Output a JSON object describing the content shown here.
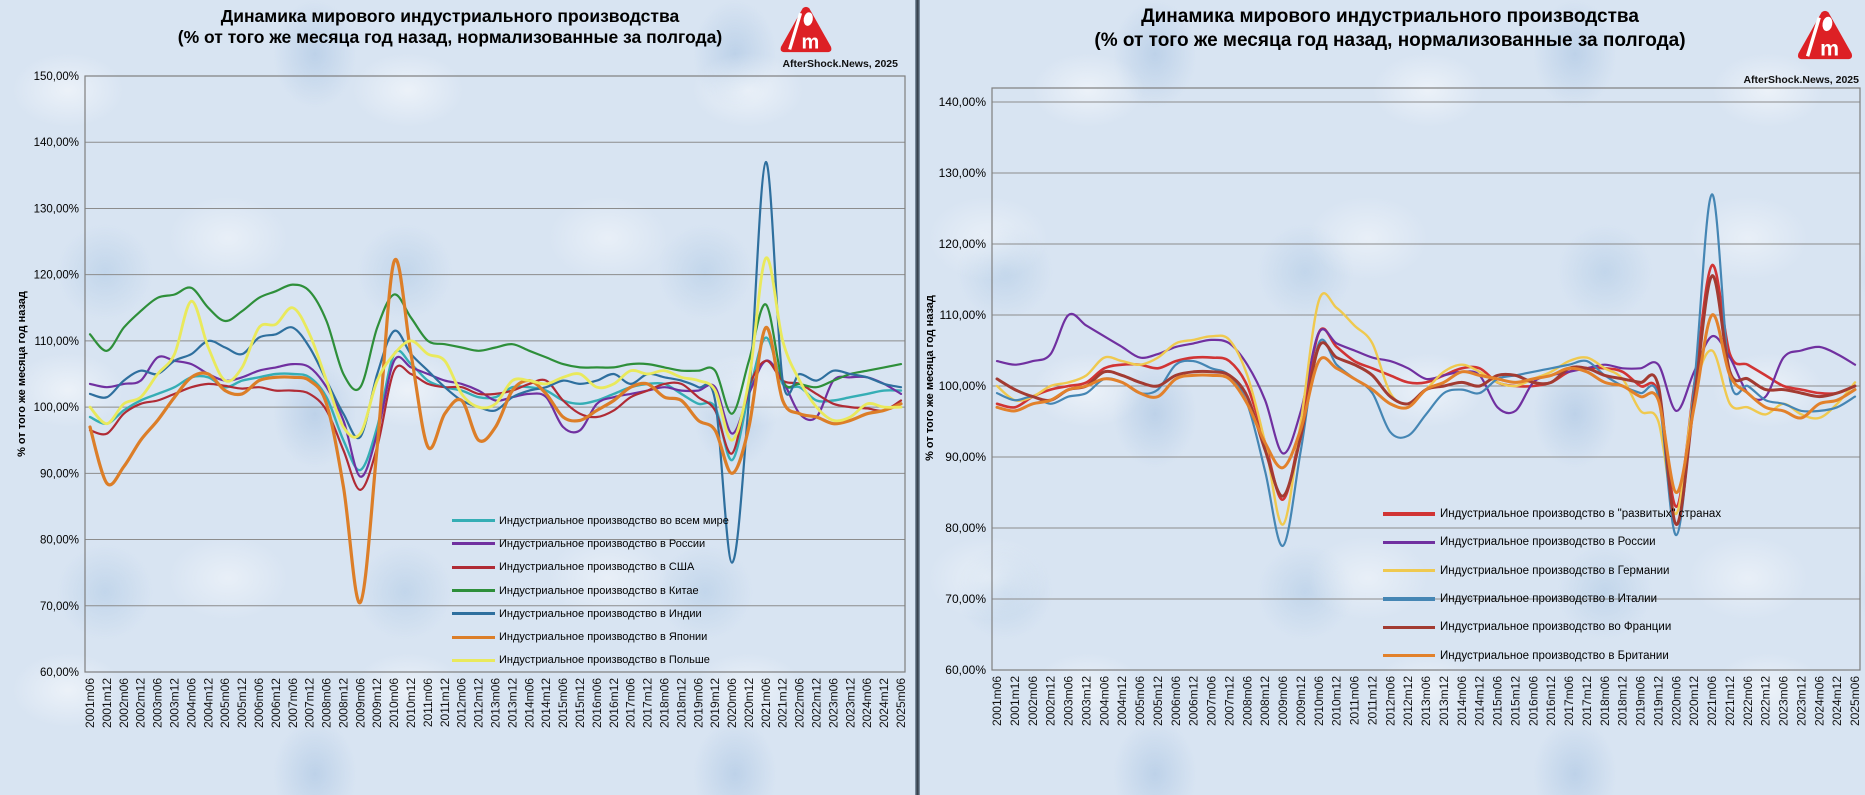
{
  "divider_name": "panel-divider",
  "chart_data": [
    {
      "type": "line",
      "title_line1": "Динамика мирового индустриального производства",
      "title_line2": "(% от того же месяца год назад, нормализованные за полгода)",
      "credit": "AfterShock.News, 2025",
      "ylabel": "% от того же месяца год назад",
      "ylim": [
        60,
        150
      ],
      "grid": true,
      "legend_position": "inside-bottom-center",
      "ytick_labels": [
        "150,00%",
        "140,00%",
        "130,00%",
        "120,00%",
        "110,00%",
        "100,00%",
        "90,00%",
        "80,00%",
        "70,00%",
        "60,00%"
      ],
      "categories": [
        "2001m06",
        "2001m12",
        "2002m06",
        "2002m12",
        "2003m06",
        "2003m12",
        "2004m06",
        "2004m12",
        "2005m06",
        "2005m12",
        "2006m06",
        "2006m12",
        "2007m06",
        "2007m12",
        "2008m06",
        "2008m12",
        "2009m06",
        "2009m12",
        "2010m06",
        "2010m12",
        "2011m06",
        "2011m12",
        "2012m06",
        "2012m12",
        "2013m06",
        "2013m12",
        "2014m06",
        "2014m12",
        "2015m06",
        "2015m12",
        "2016m06",
        "2016m12",
        "2017m06",
        "2017m12",
        "2018m06",
        "2018m12",
        "2019m06",
        "2019m12",
        "2020m06",
        "2020m12",
        "2021m06",
        "2021m12",
        "2022m06",
        "2022m12",
        "2023m06",
        "2023m12",
        "2024m06",
        "2024m12",
        "2025m06"
      ],
      "series": [
        {
          "name": "Индустриальное производство во всем мире",
          "color": "#35AEB5",
          "width": 2.4,
          "values": [
            98.5,
            97.5,
            99.5,
            101,
            102,
            103,
            104.5,
            104.5,
            103,
            104,
            104.5,
            105,
            105,
            104.5,
            101.5,
            95,
            90.5,
            97,
            108,
            106.5,
            104,
            103,
            102.5,
            101.5,
            101.5,
            103,
            103,
            102.5,
            101,
            100.5,
            101,
            102,
            103,
            103.5,
            103.5,
            102,
            100.5,
            100,
            92,
            102,
            110.5,
            103.5,
            103,
            101,
            101,
            101.5,
            102,
            102.5,
            102.5
          ]
        },
        {
          "name": "Индустриальное производство в России",
          "color": "#7030A0",
          "width": 2.2,
          "values": [
            103.5,
            103,
            103.5,
            104,
            107.5,
            107,
            106.5,
            105,
            104,
            104.5,
            105.5,
            106,
            106.5,
            106,
            103,
            98,
            89.5,
            96,
            107,
            106,
            105,
            104,
            103.5,
            102.5,
            101,
            101.5,
            102,
            101.5,
            97,
            96.5,
            100.5,
            101.5,
            102,
            102.5,
            103,
            102.5,
            102.5,
            103,
            96,
            102,
            107,
            104,
            99,
            98.5,
            104,
            104.5,
            104.5,
            103.5,
            102
          ]
        },
        {
          "name": "Индустриальное производство в США",
          "color": "#B02B35",
          "width": 2.2,
          "values": [
            96.5,
            96,
            99,
            100.5,
            101,
            102,
            103,
            103.5,
            103.2,
            102.8,
            103,
            102.5,
            102.5,
            102,
            99.5,
            93.5,
            87.5,
            94,
            105.5,
            105,
            103.5,
            103,
            103,
            102,
            102,
            102.5,
            103.5,
            104,
            101,
            99,
            98.5,
            99.5,
            101.5,
            102.5,
            103.5,
            103.5,
            101.5,
            99.5,
            93,
            103,
            107,
            104,
            103.5,
            102,
            100.5,
            100,
            99.8,
            99.5,
            101
          ]
        },
        {
          "name": "Индустриальное производство в Китае",
          "color": "#2E8F3A",
          "width": 2.2,
          "values": [
            111,
            108.5,
            112,
            114.5,
            116.5,
            117,
            118,
            115,
            113,
            114.5,
            116.5,
            117.5,
            118.5,
            117.5,
            113,
            105,
            103,
            112,
            117,
            113.5,
            110,
            109.5,
            109,
            108.5,
            109,
            109.5,
            108.5,
            107.5,
            106.5,
            106,
            106,
            106,
            106.5,
            106.5,
            106,
            105.5,
            105.5,
            105.5,
            99,
            107,
            115.5,
            104,
            103.5,
            103,
            104,
            105,
            105.5,
            106,
            106.5
          ]
        },
        {
          "name": "Индустриальное производство в Индии",
          "color": "#2E6F9E",
          "width": 2.2,
          "values": [
            102,
            101.5,
            104,
            105.5,
            105,
            107,
            108,
            110,
            109,
            108,
            110.5,
            111,
            112,
            109,
            104,
            99,
            95.5,
            105,
            111.5,
            108,
            105.5,
            103,
            101,
            100,
            99.5,
            101.5,
            102.5,
            103,
            104,
            103.5,
            104,
            105,
            103.5,
            105,
            104.5,
            104,
            103,
            101,
            76.5,
            101,
            137,
            104,
            105,
            104,
            105.5,
            105,
            104.5,
            103.5,
            103
          ]
        },
        {
          "name": "Индустриальное производство в Японии",
          "color": "#DC7E28",
          "width": 3.2,
          "values": [
            97,
            88.5,
            91,
            95,
            98,
            101.5,
            104.5,
            105,
            102.5,
            102,
            104,
            104.5,
            104.5,
            104,
            100.5,
            88,
            70.5,
            94,
            122,
            108,
            94,
            99,
            101,
            95,
            97,
            102.5,
            104,
            102,
            98.5,
            98,
            99.5,
            101,
            103,
            103.5,
            101.5,
            101,
            98,
            96.5,
            90,
            97,
            112,
            101,
            99,
            98.5,
            97.5,
            98,
            99,
            99.5,
            100.5
          ]
        },
        {
          "name": "Индустриальное производство в Польше",
          "color": "#E9E95C",
          "width": 2.8,
          "values": [
            100,
            97.5,
            100.5,
            101.5,
            105,
            108,
            116,
            109,
            104,
            106,
            112,
            112.5,
            115,
            111,
            104,
            97,
            96,
            104,
            108,
            110,
            108,
            107,
            102,
            100,
            100.5,
            104,
            104,
            103.5,
            104.5,
            105,
            103,
            103.5,
            105.5,
            105,
            105.5,
            104.5,
            104,
            102.5,
            95,
            104,
            122.5,
            110,
            104,
            100,
            98,
            98.5,
            100.5,
            100,
            100
          ]
        }
      ]
    },
    {
      "type": "line",
      "title_line1": "Динамика мирового индустриального производства",
      "title_line2": "(% от того же месяца год назад, нормализованные за полгода)",
      "credit": "AfterShock.News, 2025",
      "ylabel": "% от того же месяца год назад",
      "ylim": [
        60,
        140
      ],
      "grid": true,
      "legend_position": "inside-middle-right",
      "ytick_labels": [
        "140,00%",
        "130,00%",
        "120,00%",
        "110,00%",
        "100,00%",
        "90,00%",
        "80,00%",
        "70,00%",
        "60,00%"
      ],
      "categories": [
        "2001m06",
        "2001m12",
        "2002m06",
        "2002m12",
        "2003m06",
        "2003m12",
        "2004m06",
        "2004m12",
        "2005m06",
        "2005m12",
        "2006m06",
        "2006m12",
        "2007m06",
        "2007m12",
        "2008m06",
        "2008m12",
        "2009m06",
        "2009m12",
        "2010m06",
        "2010m12",
        "2011m06",
        "2011m12",
        "2012m06",
        "2012m12",
        "2013m06",
        "2013m12",
        "2014m06",
        "2014m12",
        "2015m06",
        "2015m12",
        "2016m06",
        "2016m12",
        "2017m06",
        "2017m12",
        "2018m06",
        "2018m12",
        "2019m06",
        "2019m12",
        "2020m06",
        "2020m12",
        "2021m06",
        "2021m12",
        "2022m06",
        "2022m12",
        "2023m06",
        "2023m12",
        "2024m06",
        "2024m12",
        "2025m06"
      ],
      "series": [
        {
          "name": "Индустриальное производство в \"развитых\" странах",
          "color": "#D13434",
          "width": 2.6,
          "values": [
            97.5,
            97,
            98.5,
            99.5,
            100,
            100.5,
            102.5,
            103,
            103,
            102.5,
            103.5,
            104,
            104,
            103.5,
            100,
            92,
            84,
            94,
            107.5,
            105.5,
            103.5,
            102.5,
            101.5,
            100.5,
            100.5,
            101.5,
            102.5,
            102.5,
            100.5,
            100,
            100,
            100.5,
            102,
            102.5,
            102.5,
            102,
            100,
            99,
            83,
            100,
            117,
            104.5,
            103,
            101.5,
            100,
            99.5,
            99,
            99,
            100
          ]
        },
        {
          "name": "Индустриальное производство в России",
          "color": "#7030A0",
          "width": 2.2,
          "values": [
            103.5,
            103,
            103.5,
            104.5,
            110,
            108.5,
            107,
            105.5,
            104,
            104.5,
            105.5,
            106,
            106.5,
            106,
            103,
            98,
            90.5,
            96.5,
            107.5,
            106,
            105,
            104,
            103.5,
            102.5,
            101,
            101.5,
            102,
            101.5,
            97,
            96.5,
            100.5,
            101.5,
            102,
            102.5,
            103,
            102.5,
            102.5,
            103,
            96.5,
            102,
            107,
            104,
            99,
            98.5,
            104,
            105,
            105.5,
            104.5,
            103
          ]
        },
        {
          "name": "Индустриальное производство в Германии",
          "color": "#EFC94F",
          "width": 2.4,
          "values": [
            100,
            98,
            98.5,
            100,
            100.5,
            101.5,
            104,
            103.5,
            103,
            104,
            106,
            106.5,
            107,
            106.5,
            101.5,
            92,
            80.5,
            95,
            112,
            111,
            108.5,
            106,
            99,
            97.5,
            99.5,
            102,
            103,
            102,
            100.5,
            100,
            101,
            102,
            103.5,
            104,
            102.5,
            101,
            96.5,
            95,
            82,
            99,
            105,
            97.5,
            97,
            96,
            97.5,
            96,
            95.5,
            97.5,
            100.5
          ]
        },
        {
          "name": "Индустриальное производство в Италии",
          "color": "#4586B4",
          "width": 2.2,
          "values": [
            99,
            98,
            98.5,
            97.5,
            98.5,
            99,
            101,
            100.5,
            99,
            99.5,
            103,
            103.5,
            102.5,
            101.5,
            97.5,
            88,
            77.5,
            91,
            106,
            103,
            101,
            99,
            93.5,
            93,
            96,
            99,
            99.5,
            99,
            101,
            101.5,
            102,
            102.5,
            103,
            103.5,
            101.5,
            100,
            99,
            98.5,
            79,
            100,
            127,
            101,
            100,
            98,
            97.5,
            96.5,
            96.5,
            97,
            98.5
          ]
        },
        {
          "name": "Индустриальное производство во Франции",
          "color": "#A23B32",
          "width": 3.0,
          "values": [
            101,
            99.5,
            98.5,
            98,
            99.5,
            100,
            102,
            101.5,
            100.5,
            100,
            101.5,
            102,
            102,
            101.5,
            98.5,
            91,
            84.5,
            93,
            105.5,
            104,
            103,
            101.5,
            98.5,
            97.5,
            99.5,
            100,
            100.5,
            100,
            101.5,
            101.5,
            100.5,
            100.5,
            102.5,
            102.5,
            101.5,
            101,
            100.5,
            100,
            80.5,
            98,
            115.5,
            102,
            101,
            99.5,
            99.5,
            99,
            98.5,
            99,
            100
          ]
        },
        {
          "name": "Индустриальное производство в Британии",
          "color": "#E2812B",
          "width": 3.0,
          "values": [
            97,
            96.5,
            97.5,
            98,
            99.5,
            100,
            101,
            100.5,
            99,
            98.5,
            101,
            101.5,
            101.5,
            101,
            97.5,
            92,
            88.5,
            94,
            103.5,
            102.5,
            101,
            99.5,
            97.5,
            97,
            99.5,
            100.5,
            102,
            101.5,
            101,
            100.5,
            101,
            101.5,
            102.5,
            102,
            100.5,
            100,
            98.5,
            98,
            85,
            97,
            110,
            101.5,
            99,
            97,
            96.5,
            95.5,
            97.5,
            98,
            99.5
          ]
        }
      ]
    }
  ]
}
